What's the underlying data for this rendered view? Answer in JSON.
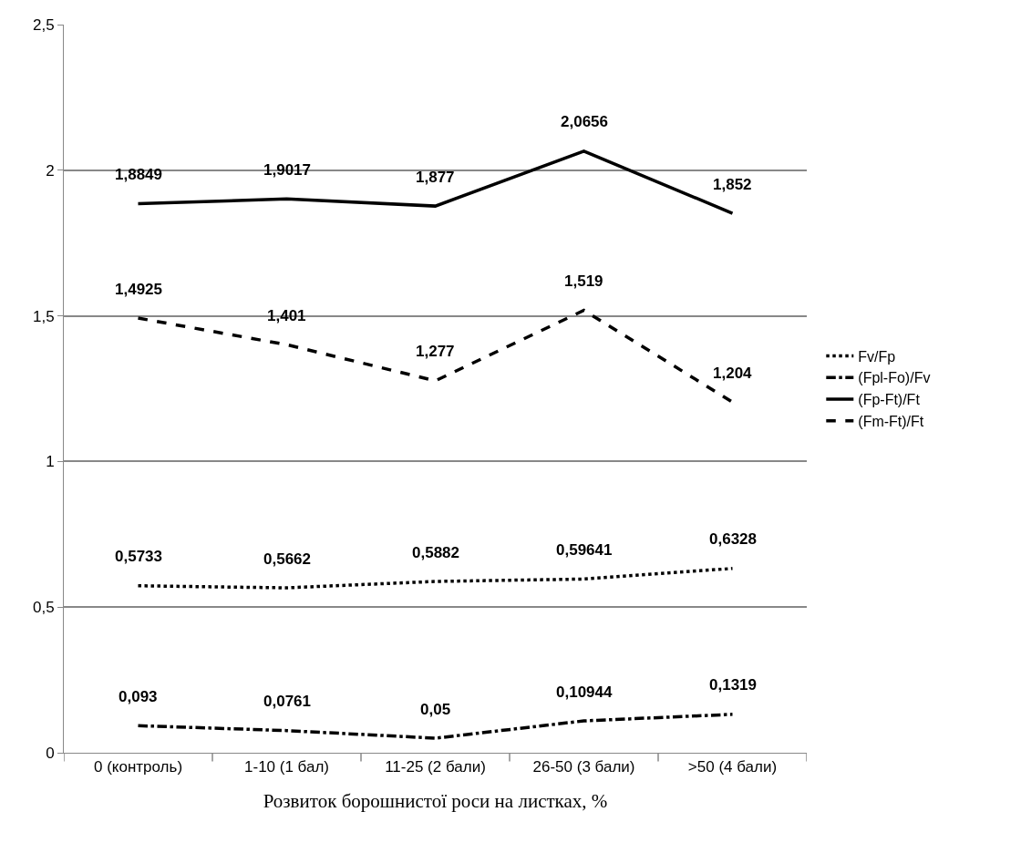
{
  "chart_data": {
    "type": "line",
    "xlabel": "Розвиток борошнистої роси на листках, %",
    "categories": [
      "0 (контроль)",
      "1-10 (1 бал)",
      "11-25 (2 бали)",
      "26-50 (3 бали)",
      ">50 (4 бали)"
    ],
    "series": [
      {
        "name": "Fv/Fp",
        "color": "#000000",
        "line_style": "dotted",
        "values": [
          0.5733,
          0.5662,
          0.5882,
          0.59641,
          0.6328
        ],
        "value_labels": [
          "0,5733",
          "0,5662",
          "0,5882",
          "0,59641",
          "0,6328"
        ]
      },
      {
        "name": "(Fpl-Fo)/Fv",
        "color": "#000000",
        "line_style": "dashdot",
        "values": [
          0.093,
          0.0761,
          0.05,
          0.10944,
          0.1319
        ],
        "value_labels": [
          "0,093",
          "0,0761",
          "0,05",
          "0,10944",
          "0,1319"
        ]
      },
      {
        "name": "(Fp-Ft)/Ft",
        "color": "#000000",
        "line_style": "solid",
        "values": [
          1.8849,
          1.9017,
          1.877,
          2.0656,
          1.852
        ],
        "value_labels": [
          "1,8849",
          "1,9017",
          "1,877",
          "2,0656",
          "1,852"
        ]
      },
      {
        "name": "(Fm-Ft)/Ft",
        "color": "#000000",
        "line_style": "dashed",
        "values": [
          1.4925,
          1.401,
          1.277,
          1.519,
          1.204
        ],
        "value_labels": [
          "1,4925",
          "1,401",
          "1,277",
          "1,519",
          "1,204"
        ]
      }
    ],
    "ylim": [
      0,
      2.5
    ],
    "yticks": [
      0,
      {
        "value": 0.5,
        "label": "0,5"
      },
      1,
      {
        "value": 1.5,
        "label": "1,5"
      },
      2,
      {
        "value": 2.5,
        "label": "2,5"
      }
    ],
    "grid": "y",
    "legend": "right",
    "marker": "none"
  }
}
